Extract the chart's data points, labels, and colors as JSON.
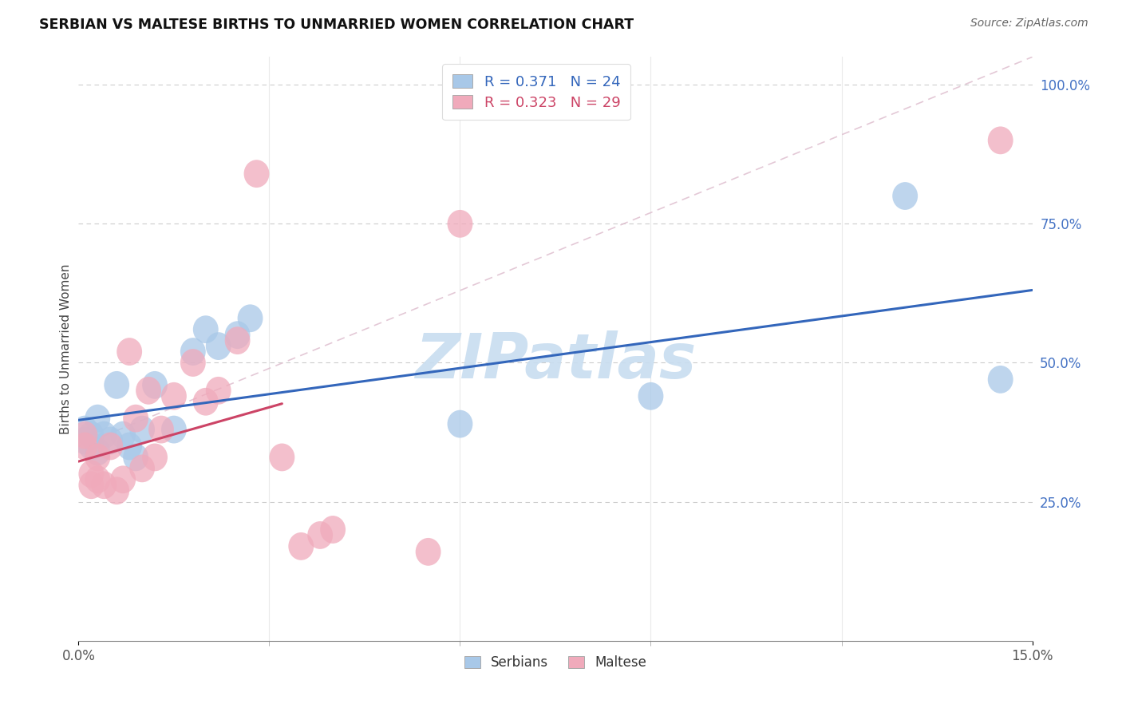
{
  "title": "SERBIAN VS MALTESE BIRTHS TO UNMARRIED WOMEN CORRELATION CHART",
  "source": "Source: ZipAtlas.com",
  "ylabel": "Births to Unmarried Women",
  "xlim": [
    0.0,
    0.15
  ],
  "ylim": [
    0.0,
    1.05
  ],
  "yticks_right": [
    0.25,
    0.5,
    0.75,
    1.0
  ],
  "yticklabels_right": [
    "25.0%",
    "50.0%",
    "75.0%",
    "100.0%"
  ],
  "serbian_R": 0.371,
  "serbian_N": 24,
  "maltese_R": 0.323,
  "maltese_N": 29,
  "serbian_color": "#a8c8e8",
  "maltese_color": "#f0aabb",
  "serbian_line_color": "#3366bb",
  "maltese_line_color": "#cc4466",
  "diagonal_color": "#ddbbcc",
  "watermark": "ZIPatlas",
  "watermark_color": "#c8ddf0",
  "serbian_x": [
    0.001,
    0.001,
    0.002,
    0.002,
    0.003,
    0.003,
    0.004,
    0.005,
    0.006,
    0.007,
    0.008,
    0.009,
    0.01,
    0.012,
    0.015,
    0.018,
    0.02,
    0.022,
    0.025,
    0.027,
    0.06,
    0.09,
    0.13,
    0.145
  ],
  "serbian_y": [
    0.36,
    0.38,
    0.35,
    0.37,
    0.34,
    0.4,
    0.37,
    0.36,
    0.46,
    0.37,
    0.35,
    0.33,
    0.38,
    0.46,
    0.38,
    0.52,
    0.56,
    0.53,
    0.55,
    0.58,
    0.39,
    0.44,
    0.8,
    0.47
  ],
  "maltese_x": [
    0.001,
    0.001,
    0.002,
    0.002,
    0.003,
    0.003,
    0.004,
    0.005,
    0.006,
    0.007,
    0.008,
    0.009,
    0.01,
    0.011,
    0.012,
    0.013,
    0.015,
    0.018,
    0.02,
    0.022,
    0.025,
    0.028,
    0.032,
    0.035,
    0.038,
    0.04,
    0.055,
    0.06,
    0.145
  ],
  "maltese_y": [
    0.35,
    0.37,
    0.3,
    0.28,
    0.29,
    0.33,
    0.28,
    0.35,
    0.27,
    0.29,
    0.52,
    0.4,
    0.31,
    0.45,
    0.33,
    0.38,
    0.44,
    0.5,
    0.43,
    0.45,
    0.54,
    0.84,
    0.33,
    0.17,
    0.19,
    0.2,
    0.16,
    0.75,
    0.9
  ]
}
